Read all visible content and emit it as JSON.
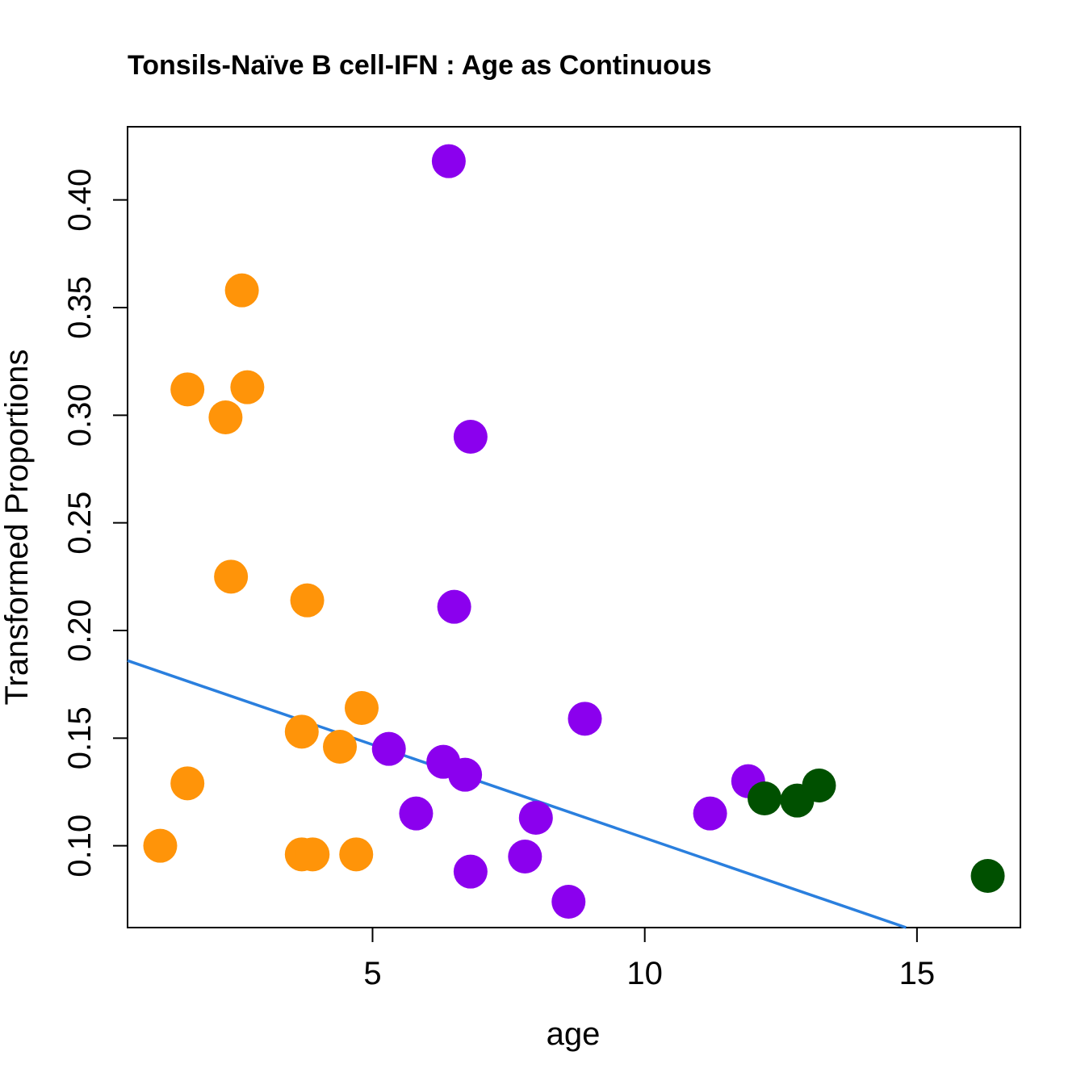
{
  "chart_data": {
    "type": "scatter",
    "title": "Tonsils-Naïve B cell-IFN : Age as Continuous",
    "xlabel": "age",
    "ylabel": "Transformed Proportions",
    "xlim": [
      0.5,
      16.9
    ],
    "ylim": [
      0.062,
      0.434
    ],
    "xticks": [
      "5",
      "10",
      "15"
    ],
    "yticks": [
      "0.10",
      "0.15",
      "0.20",
      "0.25",
      "0.30",
      "0.35",
      "0.40"
    ],
    "grid": false,
    "legend": "none",
    "series": [
      {
        "name": "orange",
        "color": "#ff9409",
        "points": [
          {
            "x": 1.1,
            "y": 0.1
          },
          {
            "x": 1.6,
            "y": 0.129
          },
          {
            "x": 1.6,
            "y": 0.312
          },
          {
            "x": 2.3,
            "y": 0.299
          },
          {
            "x": 2.4,
            "y": 0.225
          },
          {
            "x": 2.6,
            "y": 0.358
          },
          {
            "x": 2.7,
            "y": 0.313
          },
          {
            "x": 3.7,
            "y": 0.096
          },
          {
            "x": 3.7,
            "y": 0.153
          },
          {
            "x": 3.8,
            "y": 0.214
          },
          {
            "x": 3.9,
            "y": 0.096
          },
          {
            "x": 4.4,
            "y": 0.146
          },
          {
            "x": 4.7,
            "y": 0.096
          },
          {
            "x": 4.8,
            "y": 0.164
          }
        ]
      },
      {
        "name": "purple",
        "color": "#8b00ee",
        "points": [
          {
            "x": 5.3,
            "y": 0.145
          },
          {
            "x": 5.8,
            "y": 0.115
          },
          {
            "x": 6.3,
            "y": 0.139
          },
          {
            "x": 6.4,
            "y": 0.418
          },
          {
            "x": 6.5,
            "y": 0.211
          },
          {
            "x": 6.7,
            "y": 0.133
          },
          {
            "x": 6.8,
            "y": 0.29
          },
          {
            "x": 6.8,
            "y": 0.088
          },
          {
            "x": 7.8,
            "y": 0.095
          },
          {
            "x": 8.0,
            "y": 0.113
          },
          {
            "x": 8.6,
            "y": 0.074
          },
          {
            "x": 8.9,
            "y": 0.159
          },
          {
            "x": 11.2,
            "y": 0.115
          },
          {
            "x": 11.9,
            "y": 0.13
          }
        ]
      },
      {
        "name": "green",
        "color": "#005000",
        "points": [
          {
            "x": 12.2,
            "y": 0.122
          },
          {
            "x": 12.8,
            "y": 0.121
          },
          {
            "x": 13.2,
            "y": 0.128
          },
          {
            "x": 16.3,
            "y": 0.086
          }
        ]
      }
    ],
    "regression_line": {
      "color": "#2a7fde",
      "x": [
        0.5,
        14.8
      ],
      "y": [
        0.186,
        0.062
      ]
    }
  }
}
